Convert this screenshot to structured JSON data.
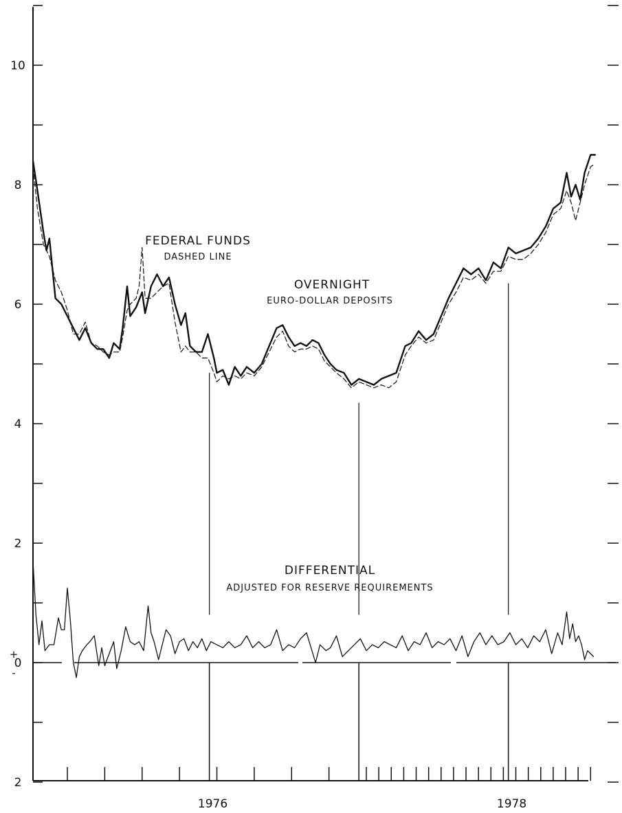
{
  "chart_data": {
    "type": "line",
    "title": "",
    "xlabel": "",
    "ylabel": "",
    "x_unit": "decimal year (weekly observations)",
    "xlim": [
      1974.77,
      1978.54
    ],
    "ylim": [
      -2,
      11
    ],
    "y_tick_labels": [
      {
        "value": 10,
        "label": "10"
      },
      {
        "value": 8,
        "label": "8"
      },
      {
        "value": 6,
        "label": "6"
      },
      {
        "value": 4,
        "label": "4"
      },
      {
        "value": 2,
        "label": "2"
      },
      {
        "value": 0,
        "label": "0"
      },
      {
        "value": -2,
        "label": "2"
      }
    ],
    "zero_sign_plus": "+",
    "zero_sign_minus": "-",
    "x_year_labels": [
      {
        "value": 1976.0,
        "label": "1976"
      },
      {
        "value": 1978.0,
        "label": "1978"
      }
    ],
    "grid": false,
    "legend": "none (series identified by annotations)",
    "annotations": {
      "fed_title": "FEDERAL FUNDS",
      "fed_sub": "DASHED LINE",
      "euro_title": "OVERNIGHT",
      "euro_sub": "EURO-DOLLAR DEPOSITS",
      "diff_title": "DIFFERENTIAL",
      "diff_sub": "ADJUSTED FOR RESERVE REQUIREMENTS"
    },
    "anchors": {
      "euro": [
        [
          1974.77,
          8.4
        ],
        [
          1974.8,
          7.9
        ],
        [
          1974.84,
          7.2
        ],
        [
          1974.86,
          6.9
        ],
        [
          1974.88,
          7.1
        ],
        [
          1974.92,
          6.1
        ],
        [
          1974.96,
          6.0
        ],
        [
          1975.0,
          5.8
        ],
        [
          1975.04,
          5.6
        ],
        [
          1975.08,
          5.4
        ],
        [
          1975.12,
          5.6
        ],
        [
          1975.16,
          5.35
        ],
        [
          1975.2,
          5.25
        ],
        [
          1975.24,
          5.25
        ],
        [
          1975.28,
          5.1
        ],
        [
          1975.31,
          5.35
        ],
        [
          1975.35,
          5.25
        ],
        [
          1975.37,
          5.6
        ],
        [
          1975.4,
          6.3
        ],
        [
          1975.42,
          5.8
        ],
        [
          1975.46,
          5.95
        ],
        [
          1975.5,
          6.2
        ],
        [
          1975.52,
          5.85
        ],
        [
          1975.56,
          6.3
        ],
        [
          1975.6,
          6.5
        ],
        [
          1975.64,
          6.3
        ],
        [
          1975.68,
          6.45
        ],
        [
          1975.72,
          6.0
        ],
        [
          1975.76,
          5.65
        ],
        [
          1975.79,
          5.85
        ],
        [
          1975.82,
          5.3
        ],
        [
          1975.86,
          5.2
        ],
        [
          1975.9,
          5.2
        ],
        [
          1975.94,
          5.5
        ],
        [
          1975.98,
          5.1
        ],
        [
          1976.0,
          4.85
        ],
        [
          1976.04,
          4.9
        ],
        [
          1976.08,
          4.65
        ],
        [
          1976.12,
          4.95
        ],
        [
          1976.16,
          4.8
        ],
        [
          1976.2,
          4.95
        ],
        [
          1976.25,
          4.85
        ],
        [
          1976.3,
          5.0
        ],
        [
          1976.35,
          5.3
        ],
        [
          1976.4,
          5.6
        ],
        [
          1976.44,
          5.65
        ],
        [
          1976.48,
          5.45
        ],
        [
          1976.52,
          5.3
        ],
        [
          1976.56,
          5.35
        ],
        [
          1976.6,
          5.3
        ],
        [
          1976.64,
          5.4
        ],
        [
          1976.68,
          5.35
        ],
        [
          1976.72,
          5.15
        ],
        [
          1976.76,
          5.0
        ],
        [
          1976.8,
          4.9
        ],
        [
          1976.85,
          4.85
        ],
        [
          1976.9,
          4.65
        ],
        [
          1976.95,
          4.75
        ],
        [
          1977.0,
          4.7
        ],
        [
          1977.05,
          4.65
        ],
        [
          1977.1,
          4.75
        ],
        [
          1977.15,
          4.8
        ],
        [
          1977.2,
          4.85
        ],
        [
          1977.26,
          5.3
        ],
        [
          1977.3,
          5.35
        ],
        [
          1977.35,
          5.55
        ],
        [
          1977.4,
          5.4
        ],
        [
          1977.45,
          5.5
        ],
        [
          1977.5,
          5.8
        ],
        [
          1977.55,
          6.1
        ],
        [
          1977.6,
          6.35
        ],
        [
          1977.65,
          6.6
        ],
        [
          1977.7,
          6.5
        ],
        [
          1977.75,
          6.6
        ],
        [
          1977.8,
          6.4
        ],
        [
          1977.85,
          6.7
        ],
        [
          1977.9,
          6.6
        ],
        [
          1977.95,
          6.95
        ],
        [
          1978.0,
          6.85
        ],
        [
          1978.05,
          6.9
        ],
        [
          1978.1,
          6.95
        ],
        [
          1978.15,
          7.1
        ],
        [
          1978.2,
          7.3
        ],
        [
          1978.25,
          7.6
        ],
        [
          1978.3,
          7.7
        ],
        [
          1978.34,
          8.2
        ],
        [
          1978.37,
          7.8
        ],
        [
          1978.4,
          8.0
        ],
        [
          1978.43,
          7.75
        ],
        [
          1978.46,
          8.2
        ],
        [
          1978.5,
          8.5
        ],
        [
          1978.53,
          8.5
        ]
      ],
      "fed": [
        [
          1974.77,
          8.3
        ],
        [
          1974.8,
          7.6
        ],
        [
          1974.84,
          7.0
        ],
        [
          1974.88,
          6.8
        ],
        [
          1974.92,
          6.4
        ],
        [
          1974.96,
          6.2
        ],
        [
          1975.0,
          5.9
        ],
        [
          1975.04,
          5.5
        ],
        [
          1975.08,
          5.5
        ],
        [
          1975.12,
          5.7
        ],
        [
          1975.16,
          5.35
        ],
        [
          1975.2,
          5.3
        ],
        [
          1975.24,
          5.2
        ],
        [
          1975.28,
          5.15
        ],
        [
          1975.31,
          5.2
        ],
        [
          1975.35,
          5.2
        ],
        [
          1975.37,
          5.45
        ],
        [
          1975.4,
          5.9
        ],
        [
          1975.42,
          6.0
        ],
        [
          1975.46,
          6.1
        ],
        [
          1975.48,
          6.3
        ],
        [
          1975.5,
          6.95
        ],
        [
          1975.52,
          6.1
        ],
        [
          1975.56,
          6.1
        ],
        [
          1975.6,
          6.2
        ],
        [
          1975.64,
          6.3
        ],
        [
          1975.68,
          6.35
        ],
        [
          1975.72,
          5.7
        ],
        [
          1975.76,
          5.2
        ],
        [
          1975.79,
          5.3
        ],
        [
          1975.82,
          5.2
        ],
        [
          1975.86,
          5.2
        ],
        [
          1975.9,
          5.1
        ],
        [
          1975.94,
          5.1
        ],
        [
          1975.98,
          4.85
        ],
        [
          1976.0,
          4.7
        ],
        [
          1976.04,
          4.8
        ],
        [
          1976.08,
          4.75
        ],
        [
          1976.12,
          4.8
        ],
        [
          1976.16,
          4.75
        ],
        [
          1976.2,
          4.85
        ],
        [
          1976.25,
          4.8
        ],
        [
          1976.3,
          4.95
        ],
        [
          1976.35,
          5.2
        ],
        [
          1976.4,
          5.45
        ],
        [
          1976.44,
          5.55
        ],
        [
          1976.48,
          5.3
        ],
        [
          1976.52,
          5.2
        ],
        [
          1976.56,
          5.25
        ],
        [
          1976.6,
          5.25
        ],
        [
          1976.64,
          5.3
        ],
        [
          1976.68,
          5.25
        ],
        [
          1976.72,
          5.05
        ],
        [
          1976.76,
          4.95
        ],
        [
          1976.8,
          4.85
        ],
        [
          1976.85,
          4.75
        ],
        [
          1976.9,
          4.6
        ],
        [
          1976.95,
          4.7
        ],
        [
          1977.0,
          4.65
        ],
        [
          1977.05,
          4.6
        ],
        [
          1977.1,
          4.65
        ],
        [
          1977.15,
          4.6
        ],
        [
          1977.2,
          4.7
        ],
        [
          1977.26,
          5.15
        ],
        [
          1977.3,
          5.3
        ],
        [
          1977.35,
          5.45
        ],
        [
          1977.4,
          5.35
        ],
        [
          1977.45,
          5.4
        ],
        [
          1977.5,
          5.7
        ],
        [
          1977.55,
          6.0
        ],
        [
          1977.6,
          6.2
        ],
        [
          1977.65,
          6.45
        ],
        [
          1977.7,
          6.4
        ],
        [
          1977.75,
          6.5
        ],
        [
          1977.8,
          6.35
        ],
        [
          1977.85,
          6.55
        ],
        [
          1977.9,
          6.55
        ],
        [
          1977.95,
          6.8
        ],
        [
          1978.0,
          6.75
        ],
        [
          1978.05,
          6.75
        ],
        [
          1978.1,
          6.85
        ],
        [
          1978.15,
          7.0
        ],
        [
          1978.2,
          7.2
        ],
        [
          1978.25,
          7.5
        ],
        [
          1978.3,
          7.6
        ],
        [
          1978.34,
          7.9
        ],
        [
          1978.37,
          7.7
        ],
        [
          1978.4,
          7.4
        ],
        [
          1978.43,
          7.7
        ],
        [
          1978.46,
          8.0
        ],
        [
          1978.5,
          8.3
        ],
        [
          1978.53,
          8.35
        ]
      ],
      "differential": [
        [
          1974.77,
          1.7
        ],
        [
          1974.79,
          0.8
        ],
        [
          1974.81,
          0.3
        ],
        [
          1974.83,
          0.7
        ],
        [
          1974.85,
          0.2
        ],
        [
          1974.88,
          0.3
        ],
        [
          1974.91,
          0.3
        ],
        [
          1974.94,
          0.75
        ],
        [
          1974.96,
          0.55
        ],
        [
          1974.98,
          0.55
        ],
        [
          1975.0,
          1.25
        ],
        [
          1975.02,
          0.7
        ],
        [
          1975.04,
          0.0
        ],
        [
          1975.06,
          -0.25
        ],
        [
          1975.08,
          0.1
        ],
        [
          1975.1,
          0.2
        ],
        [
          1975.13,
          0.3
        ],
        [
          1975.15,
          0.35
        ],
        [
          1975.18,
          0.45
        ],
        [
          1975.21,
          -0.05
        ],
        [
          1975.23,
          0.25
        ],
        [
          1975.25,
          -0.05
        ],
        [
          1975.28,
          0.15
        ],
        [
          1975.31,
          0.35
        ],
        [
          1975.33,
          -0.1
        ],
        [
          1975.36,
          0.2
        ],
        [
          1975.39,
          0.6
        ],
        [
          1975.42,
          0.35
        ],
        [
          1975.45,
          0.3
        ],
        [
          1975.48,
          0.35
        ],
        [
          1975.51,
          0.2
        ],
        [
          1975.54,
          0.95
        ],
        [
          1975.56,
          0.5
        ],
        [
          1975.58,
          0.35
        ],
        [
          1975.61,
          0.05
        ],
        [
          1975.64,
          0.35
        ],
        [
          1975.66,
          0.55
        ],
        [
          1975.69,
          0.45
        ],
        [
          1975.72,
          0.15
        ],
        [
          1975.75,
          0.35
        ],
        [
          1975.78,
          0.4
        ],
        [
          1975.81,
          0.2
        ],
        [
          1975.84,
          0.35
        ],
        [
          1975.87,
          0.25
        ],
        [
          1975.9,
          0.4
        ],
        [
          1975.93,
          0.2
        ],
        [
          1975.96,
          0.35
        ],
        [
          1976.0,
          0.3
        ],
        [
          1976.04,
          0.25
        ],
        [
          1976.08,
          0.35
        ],
        [
          1976.12,
          0.25
        ],
        [
          1976.16,
          0.3
        ],
        [
          1976.2,
          0.45
        ],
        [
          1976.24,
          0.25
        ],
        [
          1976.28,
          0.35
        ],
        [
          1976.32,
          0.25
        ],
        [
          1976.36,
          0.3
        ],
        [
          1976.4,
          0.55
        ],
        [
          1976.44,
          0.2
        ],
        [
          1976.48,
          0.3
        ],
        [
          1976.52,
          0.25
        ],
        [
          1976.56,
          0.4
        ],
        [
          1976.6,
          0.5
        ],
        [
          1976.63,
          0.25
        ],
        [
          1976.66,
          0.0
        ],
        [
          1976.69,
          0.3
        ],
        [
          1976.73,
          0.2
        ],
        [
          1976.76,
          0.25
        ],
        [
          1976.8,
          0.45
        ],
        [
          1976.84,
          0.1
        ],
        [
          1976.88,
          0.2
        ],
        [
          1976.92,
          0.3
        ],
        [
          1976.96,
          0.4
        ],
        [
          1977.0,
          0.2
        ],
        [
          1977.04,
          0.3
        ],
        [
          1977.08,
          0.25
        ],
        [
          1977.12,
          0.35
        ],
        [
          1977.16,
          0.3
        ],
        [
          1977.2,
          0.25
        ],
        [
          1977.24,
          0.45
        ],
        [
          1977.28,
          0.2
        ],
        [
          1977.32,
          0.35
        ],
        [
          1977.36,
          0.3
        ],
        [
          1977.4,
          0.5
        ],
        [
          1977.44,
          0.25
        ],
        [
          1977.48,
          0.35
        ],
        [
          1977.52,
          0.3
        ],
        [
          1977.56,
          0.4
        ],
        [
          1977.6,
          0.2
        ],
        [
          1977.64,
          0.45
        ],
        [
          1977.68,
          0.1
        ],
        [
          1977.72,
          0.35
        ],
        [
          1977.76,
          0.5
        ],
        [
          1977.8,
          0.3
        ],
        [
          1977.84,
          0.45
        ],
        [
          1977.88,
          0.3
        ],
        [
          1977.92,
          0.35
        ],
        [
          1977.96,
          0.5
        ],
        [
          1978.0,
          0.3
        ],
        [
          1978.04,
          0.4
        ],
        [
          1978.08,
          0.25
        ],
        [
          1978.12,
          0.45
        ],
        [
          1978.16,
          0.35
        ],
        [
          1978.2,
          0.55
        ],
        [
          1978.24,
          0.15
        ],
        [
          1978.28,
          0.5
        ],
        [
          1978.31,
          0.3
        ],
        [
          1978.34,
          0.85
        ],
        [
          1978.36,
          0.4
        ],
        [
          1978.38,
          0.65
        ],
        [
          1978.4,
          0.35
        ],
        [
          1978.42,
          0.45
        ],
        [
          1978.44,
          0.3
        ],
        [
          1978.46,
          0.05
        ],
        [
          1978.48,
          0.2
        ],
        [
          1978.5,
          0.15
        ],
        [
          1978.52,
          0.1
        ]
      ]
    },
    "series": [
      {
        "id": "euro",
        "style": "solid, heavy",
        "color": "#111111"
      },
      {
        "id": "fed",
        "style": "dashed",
        "color": "#222222"
      },
      {
        "id": "differential",
        "style": "solid, thin",
        "color": "#111111"
      }
    ],
    "reference_lines": {
      "vertical_x": [
        1975.95,
        1976.95,
        1977.95
      ],
      "zero_line_y": 0
    }
  }
}
